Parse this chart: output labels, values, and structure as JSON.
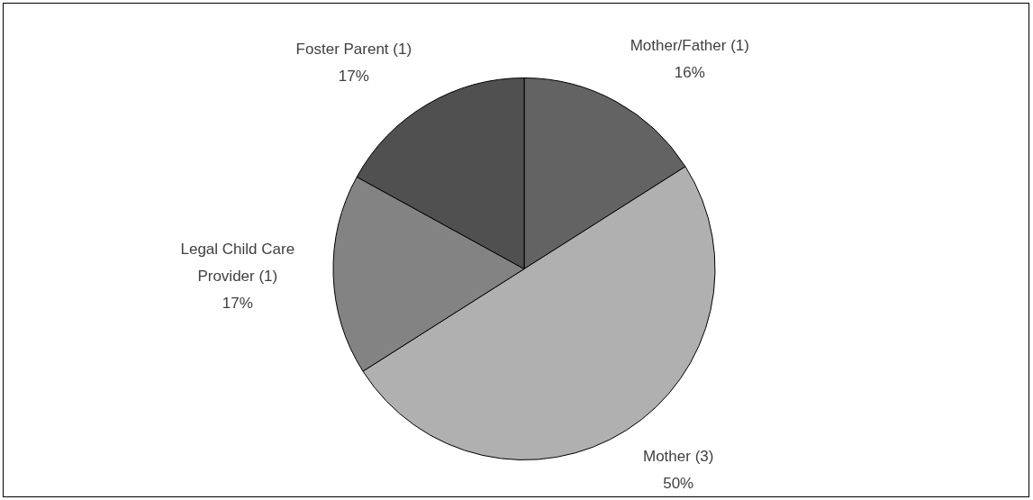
{
  "chart_data": {
    "type": "pie",
    "categories": [
      "Mother/Father (1)",
      "Mother (3)",
      "Legal Child Care Provider (1)",
      "Foster Parent (1)"
    ],
    "values": [
      16,
      50,
      17,
      17
    ],
    "value_labels": [
      "16%",
      "50%",
      "17%",
      "17%"
    ],
    "colors": [
      "#636363",
      "#b0b0b0",
      "#838383",
      "#505050"
    ],
    "legend": false
  }
}
